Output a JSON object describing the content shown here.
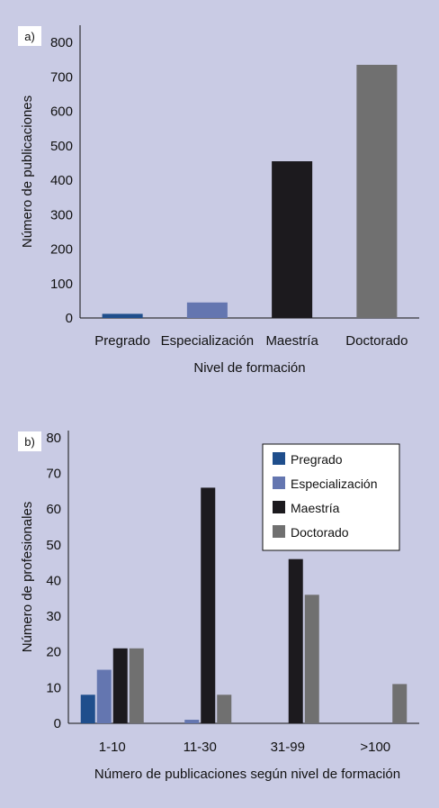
{
  "chart_data": [
    {
      "panel_label": "a)",
      "type": "bar",
      "categories": [
        "Pregrado",
        "Especialización",
        "Maestría",
        "Doctorado"
      ],
      "values": [
        12,
        45,
        455,
        735
      ],
      "bar_colors": [
        "#1f4e8c",
        "#6476b0",
        "#1c1a1e",
        "#707070"
      ],
      "xlabel": "Nivel de formación",
      "ylabel": "Número de publicaciones",
      "ylim": [
        0,
        850
      ],
      "yticks": [
        0,
        100,
        200,
        300,
        400,
        500,
        600,
        700,
        800
      ],
      "grid": false
    },
    {
      "panel_label": "b)",
      "type": "bar",
      "categories": [
        "1-10",
        "11-30",
        "31-99",
        ">100"
      ],
      "series": [
        {
          "name": "Pregrado",
          "color": "#1f4e8c",
          "values": [
            8,
            0,
            0,
            0
          ]
        },
        {
          "name": "Especialización",
          "color": "#6476b0",
          "values": [
            15,
            1,
            0,
            0
          ]
        },
        {
          "name": "Maestría",
          "color": "#1c1a1e",
          "values": [
            21,
            66,
            46,
            0
          ]
        },
        {
          "name": "Doctorado",
          "color": "#707070",
          "values": [
            21,
            8,
            36,
            11
          ]
        }
      ],
      "xlabel": "Número de publicaciones según nivel de formación",
      "ylabel": "Número de profesionales",
      "ylim": [
        0,
        82
      ],
      "yticks": [
        0,
        10,
        20,
        30,
        40,
        50,
        60,
        70,
        80
      ],
      "legend_position": "top-right",
      "grid": false
    }
  ]
}
